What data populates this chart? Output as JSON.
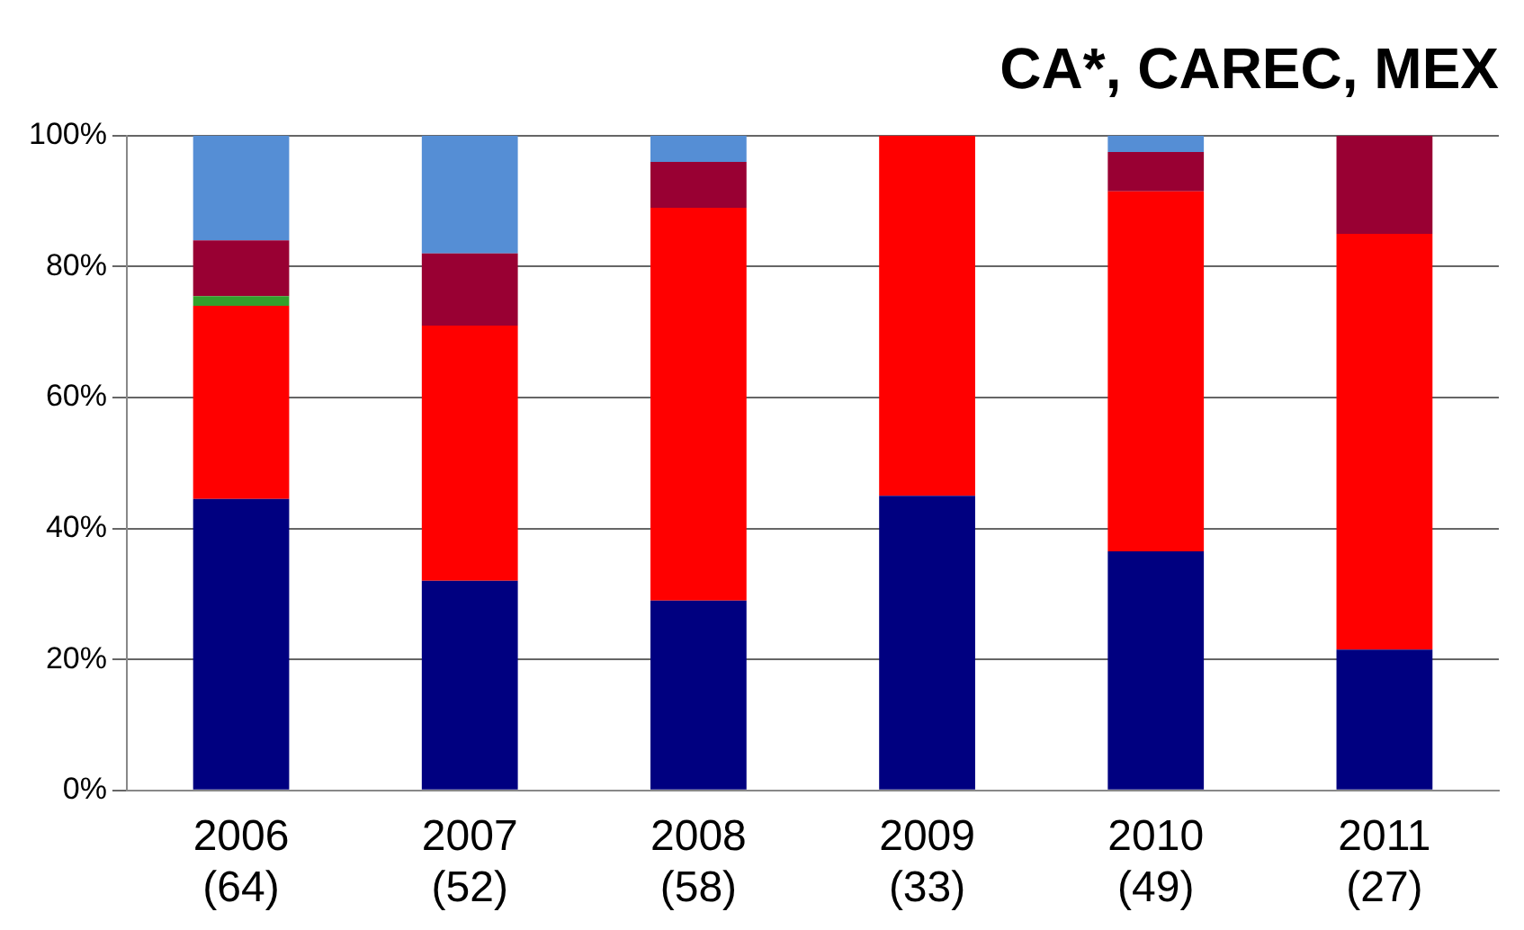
{
  "chart_data": {
    "type": "bar",
    "title": "CA*, CAREC, MEX",
    "stacked": true,
    "categories": [
      "2006\n(64)",
      "2007\n(52)",
      "2008\n(58)",
      "2009\n(33)",
      "2010\n(49)",
      "2011\n(27)"
    ],
    "series": [
      {
        "color": "#000080",
        "values": [
          44.5,
          32,
          29,
          45,
          36.5,
          21.5
        ]
      },
      {
        "color": "#ff0000",
        "values": [
          29.5,
          39,
          60,
          55,
          55,
          63.5
        ]
      },
      {
        "color": "#33a02c",
        "values": [
          1.5,
          null,
          null,
          null,
          null,
          null
        ]
      },
      {
        "color": "#990033",
        "values": [
          8.5,
          11,
          7,
          null,
          6,
          15
        ]
      },
      {
        "color": "#558ed5",
        "values": [
          16,
          18,
          4,
          null,
          2.5,
          null
        ]
      }
    ],
    "ylim": [
      0,
      100
    ],
    "yticks": [
      {
        "value": 0,
        "label": "0%"
      },
      {
        "value": 20,
        "label": "20%"
      },
      {
        "value": 40,
        "label": "40%"
      },
      {
        "value": 60,
        "label": "60%"
      },
      {
        "value": 80,
        "label": "80%"
      },
      {
        "value": 100,
        "label": "100%"
      }
    ],
    "grid": "y",
    "legend": false
  }
}
